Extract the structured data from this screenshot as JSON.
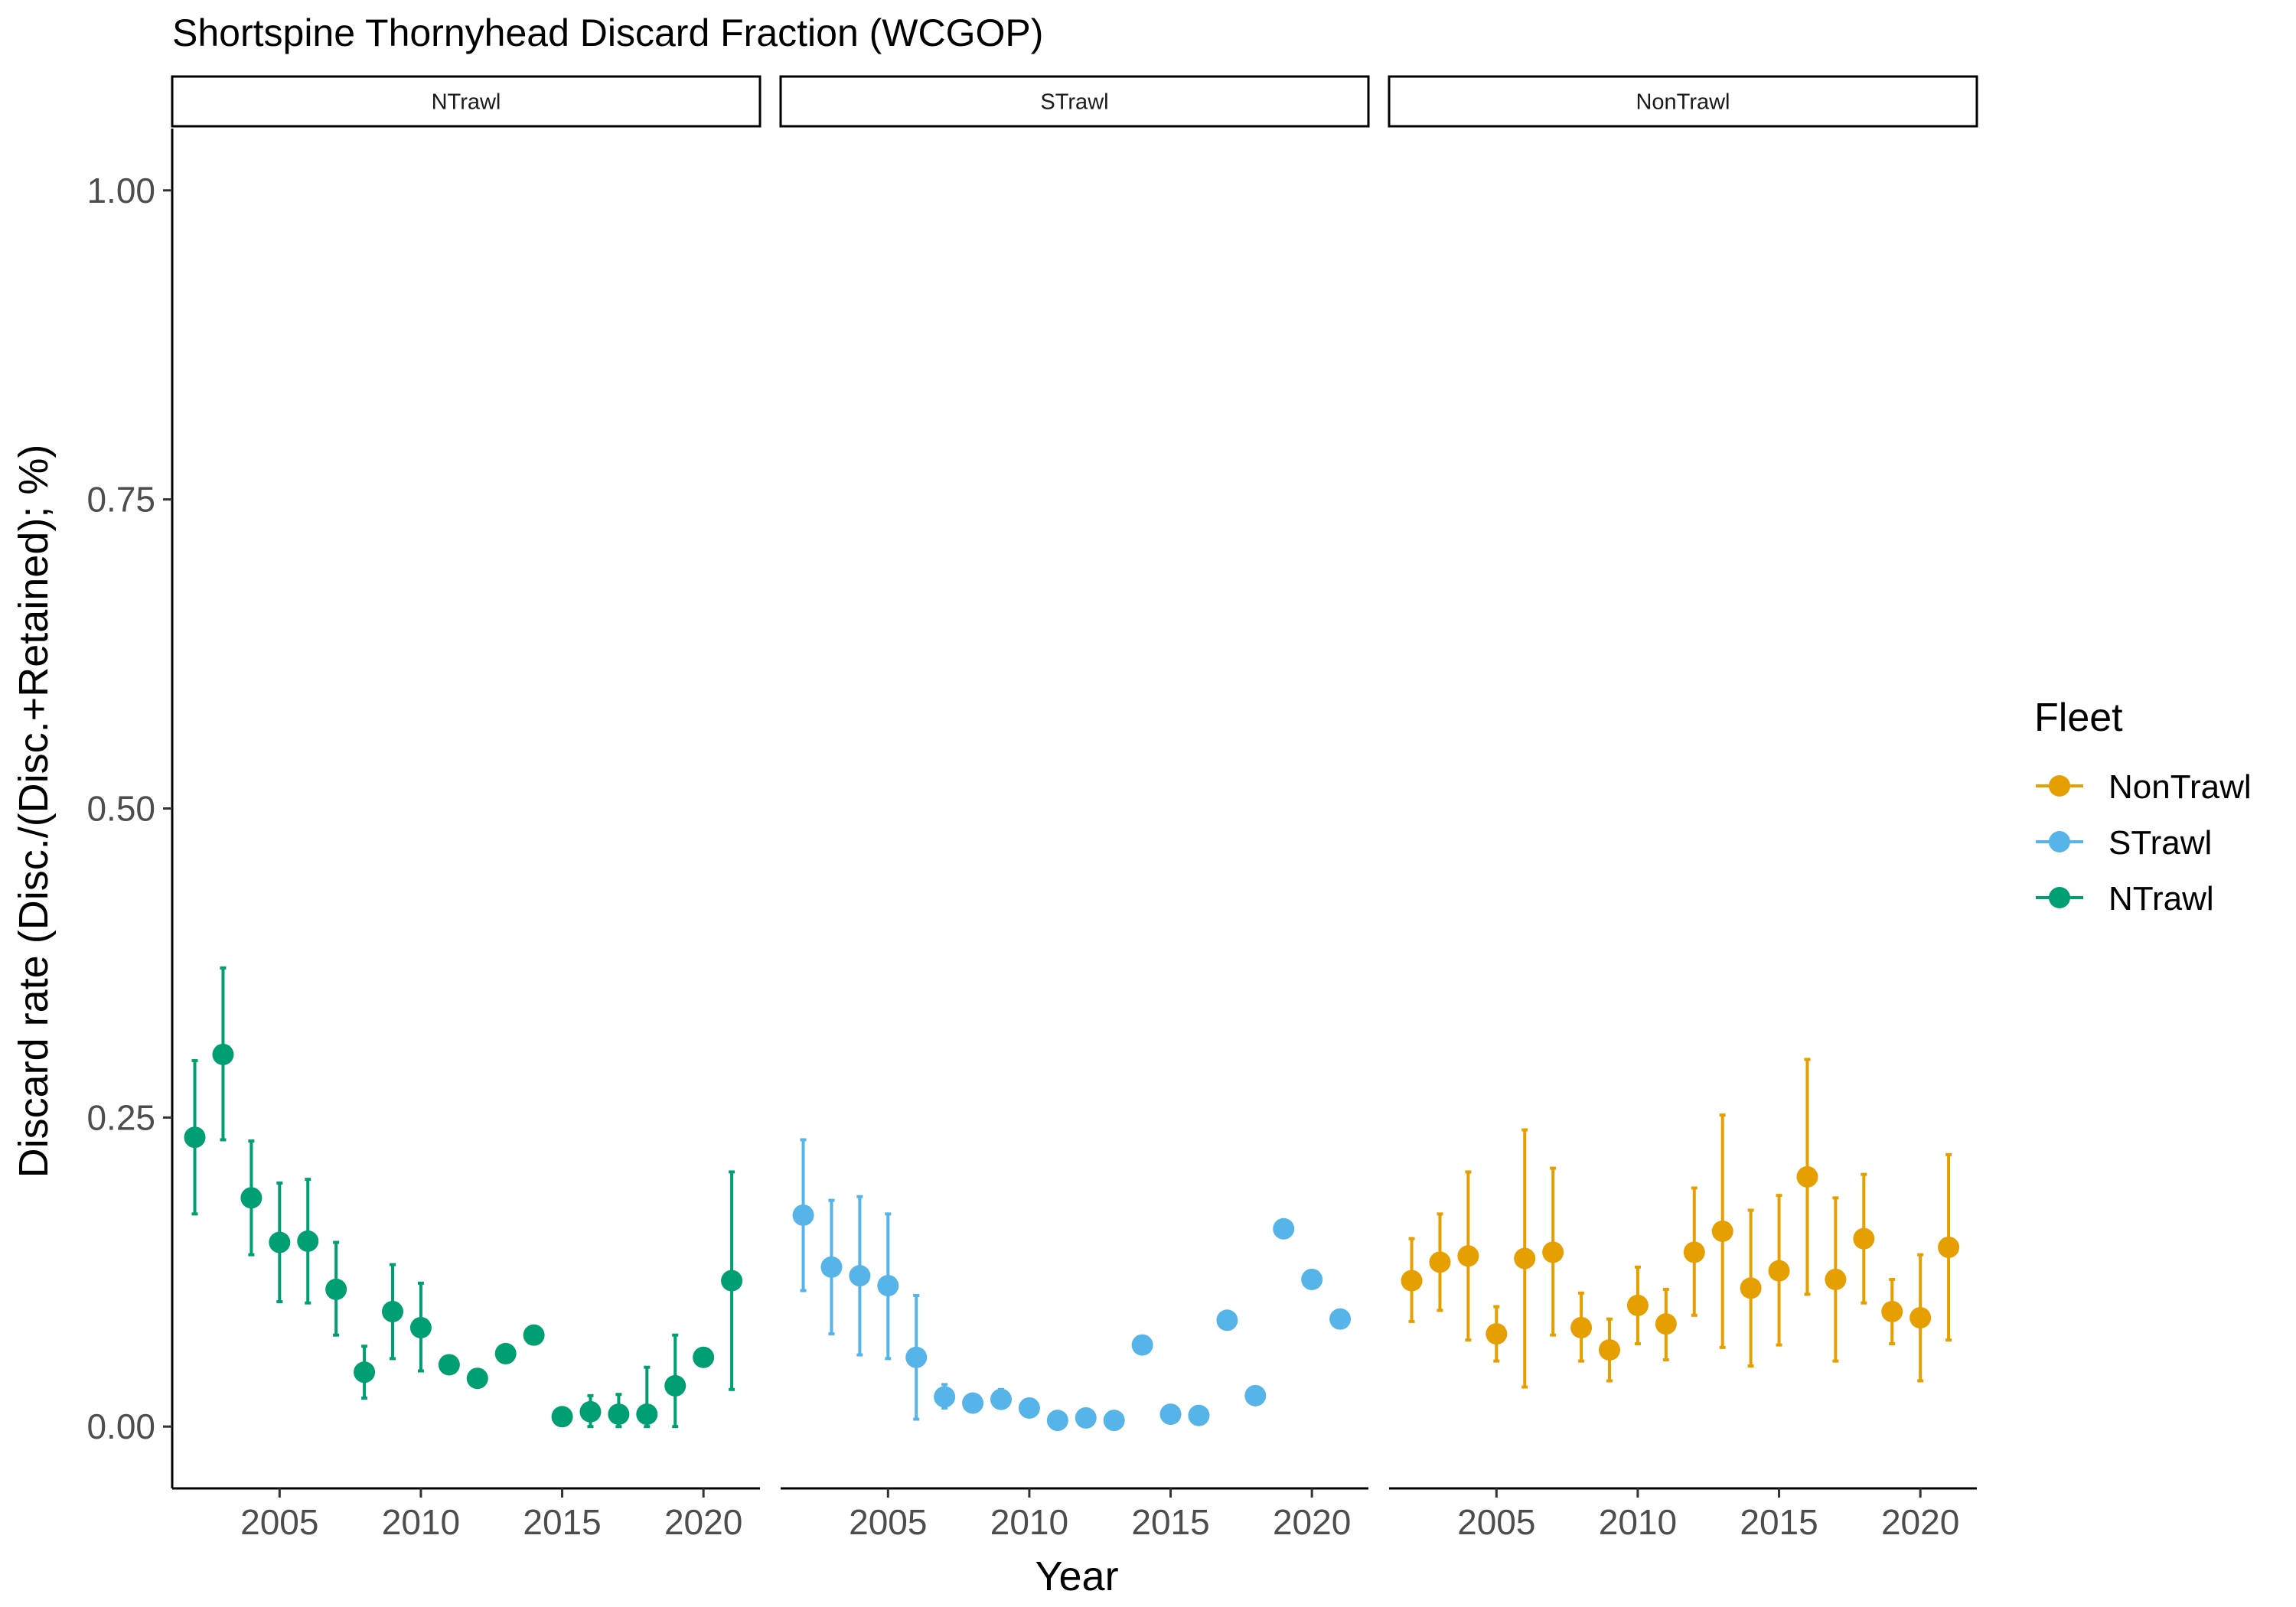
{
  "colors": {
    "NonTrawl": "#E69F00",
    "STrawl": "#56B4E9",
    "NTrawl": "#009E73"
  },
  "chart_data": {
    "type": "scatter",
    "title": "Shortspine Thornyhead Discard Fraction (WCGOP)",
    "xlabel": "Year",
    "ylabel": "Discard rate (Disc./(Disc.+Retained); %)",
    "xlim": [
      2001.2,
      2022.0
    ],
    "ylim": [
      -0.05,
      1.05
    ],
    "x_ticks": [
      2005,
      2010,
      2015,
      2020
    ],
    "x_tick_labels": [
      "2005",
      "2010",
      "2015",
      "2020"
    ],
    "y_ticks": [
      0,
      0.25,
      0.5,
      0.75,
      1.0
    ],
    "y_tick_labels": [
      "0.00",
      "0.25",
      "0.50",
      "0.75",
      "1.00"
    ],
    "grid": false,
    "legend": {
      "title": "Fleet",
      "position": "right",
      "entries": [
        "NonTrawl",
        "STrawl",
        "NTrawl"
      ]
    },
    "panels": [
      {
        "name": "NTrawl",
        "series": "NTrawl",
        "points": [
          {
            "x": 2002,
            "y": 0.234,
            "lo": 0.172,
            "hi": 0.296
          },
          {
            "x": 2003,
            "y": 0.301,
            "lo": 0.232,
            "hi": 0.371
          },
          {
            "x": 2004,
            "y": 0.185,
            "lo": 0.139,
            "hi": 0.231
          },
          {
            "x": 2005,
            "y": 0.149,
            "lo": 0.101,
            "hi": 0.197
          },
          {
            "x": 2006,
            "y": 0.15,
            "lo": 0.1,
            "hi": 0.2
          },
          {
            "x": 2007,
            "y": 0.111,
            "lo": 0.074,
            "hi": 0.149
          },
          {
            "x": 2008,
            "y": 0.044,
            "lo": 0.023,
            "hi": 0.065
          },
          {
            "x": 2009,
            "y": 0.093,
            "lo": 0.055,
            "hi": 0.131
          },
          {
            "x": 2010,
            "y": 0.08,
            "lo": 0.045,
            "hi": 0.116
          },
          {
            "x": 2011,
            "y": 0.05,
            "lo": null,
            "hi": null
          },
          {
            "x": 2012,
            "y": 0.039,
            "lo": null,
            "hi": null
          },
          {
            "x": 2013,
            "y": 0.059,
            "lo": null,
            "hi": null
          },
          {
            "x": 2014,
            "y": 0.074,
            "lo": null,
            "hi": null
          },
          {
            "x": 2015,
            "y": 0.008,
            "lo": null,
            "hi": null
          },
          {
            "x": 2016,
            "y": 0.012,
            "lo": 0.0,
            "hi": 0.025
          },
          {
            "x": 2017,
            "y": 0.01,
            "lo": 0.0,
            "hi": 0.026
          },
          {
            "x": 2018,
            "y": 0.01,
            "lo": 0.0,
            "hi": 0.048
          },
          {
            "x": 2019,
            "y": 0.033,
            "lo": 0.0,
            "hi": 0.074
          },
          {
            "x": 2020,
            "y": 0.056,
            "lo": null,
            "hi": null
          },
          {
            "x": 2021,
            "y": 0.118,
            "lo": 0.03,
            "hi": 0.206
          }
        ]
      },
      {
        "name": "STrawl",
        "series": "STrawl",
        "points": [
          {
            "x": 2002,
            "y": 0.171,
            "lo": 0.11,
            "hi": 0.232
          },
          {
            "x": 2003,
            "y": 0.129,
            "lo": 0.075,
            "hi": 0.183
          },
          {
            "x": 2004,
            "y": 0.122,
            "lo": 0.058,
            "hi": 0.186
          },
          {
            "x": 2005,
            "y": 0.114,
            "lo": 0.055,
            "hi": 0.172
          },
          {
            "x": 2006,
            "y": 0.056,
            "lo": 0.006,
            "hi": 0.106
          },
          {
            "x": 2007,
            "y": 0.024,
            "lo": 0.015,
            "hi": 0.034
          },
          {
            "x": 2008,
            "y": 0.019,
            "lo": null,
            "hi": null
          },
          {
            "x": 2009,
            "y": 0.022,
            "lo": 0.016,
            "hi": 0.03
          },
          {
            "x": 2010,
            "y": 0.015,
            "lo": null,
            "hi": null
          },
          {
            "x": 2011,
            "y": 0.005,
            "lo": null,
            "hi": null
          },
          {
            "x": 2012,
            "y": 0.007,
            "lo": null,
            "hi": null
          },
          {
            "x": 2013,
            "y": 0.005,
            "lo": null,
            "hi": null
          },
          {
            "x": 2014,
            "y": 0.066,
            "lo": null,
            "hi": null
          },
          {
            "x": 2015,
            "y": 0.01,
            "lo": null,
            "hi": null
          },
          {
            "x": 2016,
            "y": 0.009,
            "lo": null,
            "hi": null
          },
          {
            "x": 2017,
            "y": 0.086,
            "lo": null,
            "hi": null
          },
          {
            "x": 2018,
            "y": 0.025,
            "lo": null,
            "hi": null
          },
          {
            "x": 2019,
            "y": 0.16,
            "lo": null,
            "hi": null
          },
          {
            "x": 2020,
            "y": 0.119,
            "lo": null,
            "hi": null
          },
          {
            "x": 2021,
            "y": 0.087,
            "lo": null,
            "hi": null
          }
        ]
      },
      {
        "name": "NonTrawl",
        "series": "NonTrawl",
        "points": [
          {
            "x": 2002,
            "y": 0.118,
            "lo": 0.085,
            "hi": 0.152
          },
          {
            "x": 2003,
            "y": 0.133,
            "lo": 0.094,
            "hi": 0.172
          },
          {
            "x": 2004,
            "y": 0.138,
            "lo": 0.07,
            "hi": 0.206
          },
          {
            "x": 2005,
            "y": 0.075,
            "lo": 0.053,
            "hi": 0.097
          },
          {
            "x": 2006,
            "y": 0.136,
            "lo": 0.032,
            "hi": 0.24
          },
          {
            "x": 2007,
            "y": 0.141,
            "lo": 0.074,
            "hi": 0.209
          },
          {
            "x": 2008,
            "y": 0.08,
            "lo": 0.053,
            "hi": 0.108
          },
          {
            "x": 2009,
            "y": 0.062,
            "lo": 0.037,
            "hi": 0.087
          },
          {
            "x": 2010,
            "y": 0.098,
            "lo": 0.067,
            "hi": 0.129
          },
          {
            "x": 2011,
            "y": 0.083,
            "lo": 0.054,
            "hi": 0.111
          },
          {
            "x": 2012,
            "y": 0.141,
            "lo": 0.09,
            "hi": 0.193
          },
          {
            "x": 2013,
            "y": 0.158,
            "lo": 0.064,
            "hi": 0.252
          },
          {
            "x": 2014,
            "y": 0.112,
            "lo": 0.049,
            "hi": 0.175
          },
          {
            "x": 2015,
            "y": 0.126,
            "lo": 0.066,
            "hi": 0.187
          },
          {
            "x": 2016,
            "y": 0.202,
            "lo": 0.107,
            "hi": 0.297
          },
          {
            "x": 2017,
            "y": 0.119,
            "lo": 0.053,
            "hi": 0.185
          },
          {
            "x": 2018,
            "y": 0.152,
            "lo": 0.1,
            "hi": 0.204
          },
          {
            "x": 2019,
            "y": 0.093,
            "lo": 0.067,
            "hi": 0.119
          },
          {
            "x": 2020,
            "y": 0.088,
            "lo": 0.037,
            "hi": 0.139
          },
          {
            "x": 2021,
            "y": 0.145,
            "lo": 0.07,
            "hi": 0.22
          }
        ]
      }
    ]
  }
}
